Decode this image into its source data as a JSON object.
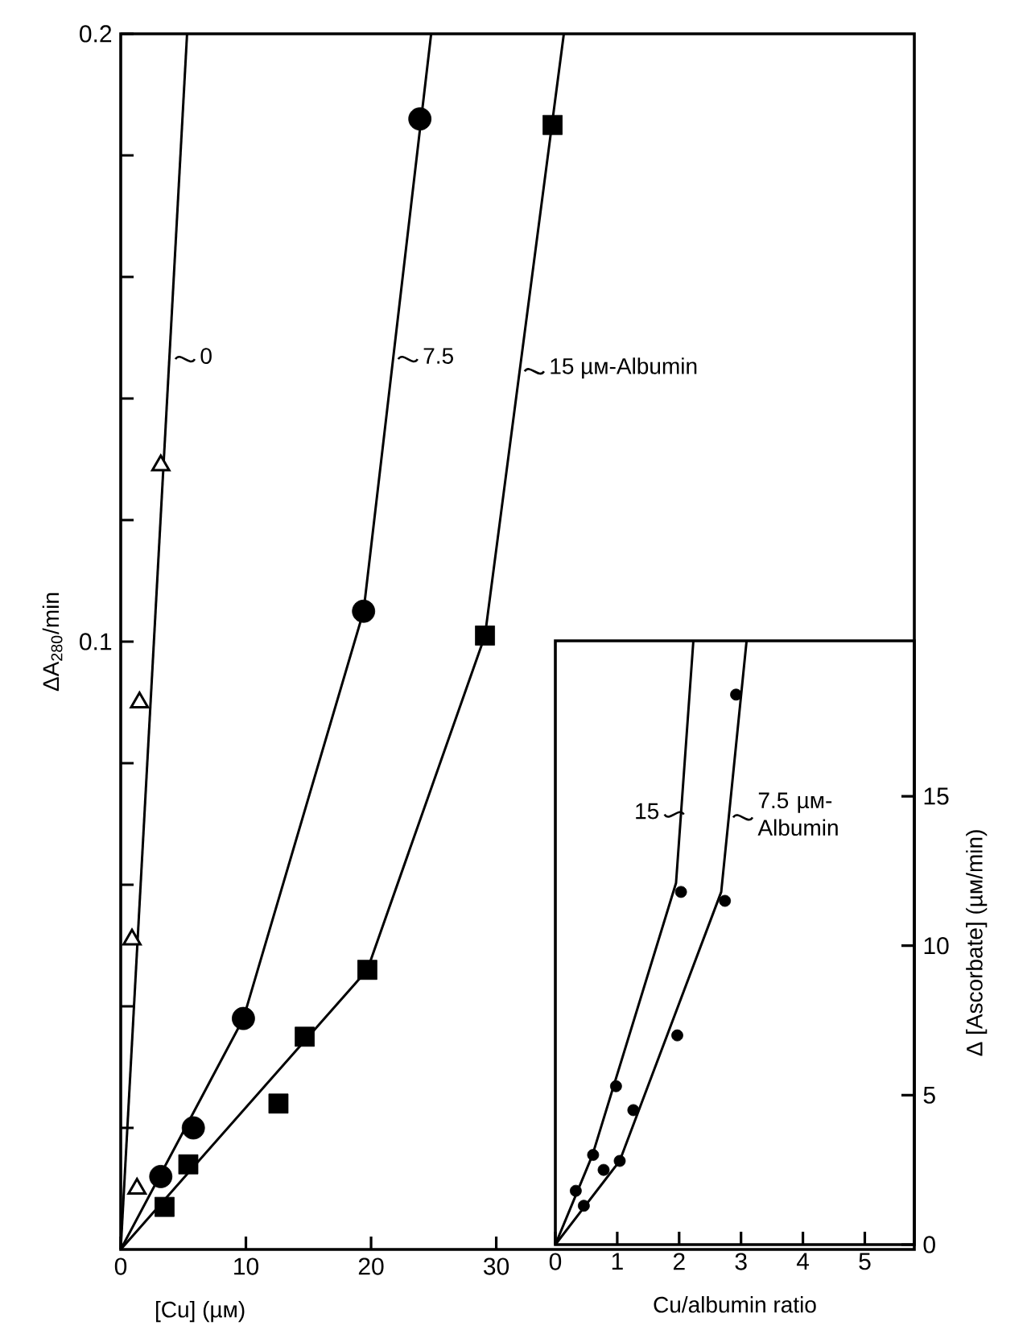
{
  "chart_data": [
    {
      "type": "scatter",
      "xlabel": "[Cu] (µм)",
      "ylabel": "ΔA$_{280}$/min",
      "xlim": [
        0,
        63.4
      ],
      "ylim": [
        0,
        0.2
      ],
      "xticks": [
        0,
        10,
        20,
        30
      ],
      "yticks": [
        {
          "value": 0.02,
          "label": null
        },
        {
          "value": 0.04,
          "label": null
        },
        {
          "value": 0.06,
          "label": null
        },
        {
          "value": 0.08,
          "label": null
        },
        0.1,
        {
          "value": 0.12,
          "label": null
        },
        {
          "value": 0.14,
          "label": null
        },
        {
          "value": 0.16,
          "label": null
        },
        {
          "value": 0.18,
          "label": null
        },
        0.2
      ],
      "series": [
        {
          "color": "#000000",
          "marker": "triangle",
          "x": [
            1.3,
            0.9,
            1.5,
            3.2
          ],
          "values": [
            0.01,
            0.051,
            0.09,
            0.129
          ]
        },
        {
          "color": "#000000",
          "marker": "circle",
          "x": [
            3.2,
            5.8,
            9.8,
            19.4,
            23.9
          ],
          "values": [
            0.012,
            0.02,
            0.038,
            0.105,
            0.186
          ]
        },
        {
          "color": "#000000",
          "marker": "square",
          "x": [
            3.5,
            5.4,
            12.6,
            14.7,
            19.7,
            29.1,
            34.5
          ],
          "values": [
            0.007,
            0.014,
            0.024,
            0.035,
            0.046,
            0.101,
            0.185
          ]
        },
        {
          "type": "line",
          "color": "#000000",
          "x": [
            0,
            5.3
          ],
          "values": [
            0,
            0.2
          ]
        },
        {
          "type": "line",
          "color": "#000000",
          "x": [
            0,
            9.8,
            19.4,
            24.8
          ],
          "values": [
            0,
            0.038,
            0.105,
            0.2
          ]
        },
        {
          "type": "line",
          "color": "#000000",
          "x": [
            0,
            19.7,
            29.1,
            35.4
          ],
          "values": [
            0,
            0.046,
            0.101,
            0.2
          ]
        }
      ],
      "annotations": [
        {
          "text": "0",
          "x": 4.5,
          "y": 0.147
        },
        {
          "text": "7.5",
          "x": 22.3,
          "y": 0.147
        },
        {
          "text": "15 µм-Albumin",
          "x": 32.4,
          "y": 0.145
        }
      ]
    },
    {
      "type": "scatter",
      "xlabel": "Cu/albumin ratio",
      "ylabel": "Δ [Ascorbate] (µм/min)",
      "xlim": [
        0,
        5.8
      ],
      "ylim": [
        0,
        20.2
      ],
      "xticks": [
        0,
        1,
        2,
        3,
        4,
        5
      ],
      "yticks": [
        0,
        5,
        10,
        15
      ],
      "series": [
        {
          "color": "#000000",
          "marker": "circle",
          "x": [
            0.33,
            0.61,
            0.98,
            2.03
          ],
          "values": [
            1.8,
            3.0,
            5.3,
            11.8
          ]
        },
        {
          "color": "#000000",
          "marker": "circle",
          "x": [
            0.46,
            0.78,
            1.04,
            1.26,
            1.97,
            2.74,
            2.92
          ],
          "values": [
            1.3,
            2.5,
            2.8,
            4.5,
            7.0,
            11.5,
            18.4
          ]
        },
        {
          "type": "line",
          "color": "#000000",
          "x": [
            0,
            0.6,
            1.95,
            2.23
          ],
          "values": [
            0,
            3.0,
            12.1,
            20.2
          ]
        },
        {
          "type": "line",
          "color": "#000000",
          "x": [
            0,
            1.04,
            2.68,
            3.09
          ],
          "values": [
            0,
            2.8,
            11.8,
            20.2
          ]
        }
      ],
      "annotations": [
        {
          "text": "15",
          "x": 2.05,
          "y": 14.5
        },
        {
          "text": "7.5 µм-Albumin",
          "x": 2.9,
          "y": 14.4
        }
      ]
    }
  ]
}
